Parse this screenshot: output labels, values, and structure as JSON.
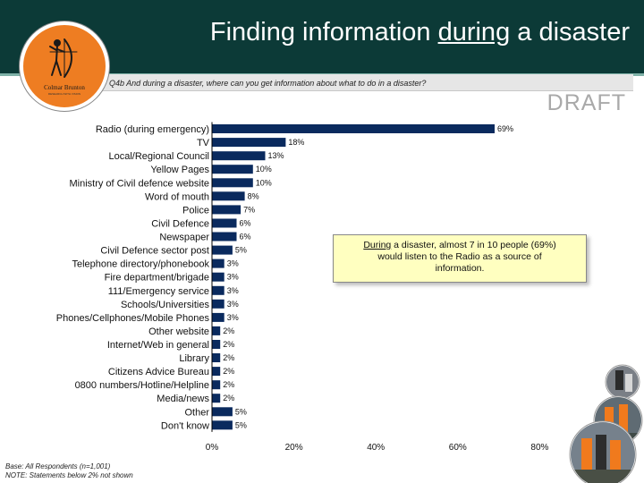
{
  "header": {
    "title_prefix": "Finding information ",
    "title_emphasis": "during",
    "title_suffix": " a disaster",
    "question": "Q4b  And during a disaster, where can you get information about what to do in a disaster?",
    "draft_label": "DRAFT"
  },
  "logo": {
    "name": "Colmar Brunton",
    "tagline": "RESEARCH WITH VISION"
  },
  "callout": {
    "emphasis": "During",
    "rest_line1": " a disaster, almost 7 in 10 people (69%)",
    "line2": "would listen to the Radio as a source of",
    "line3": "information."
  },
  "footnotes": {
    "base": "Base: All Respondents (n=1,001)",
    "note": "NOTE: Statements below 2% not shown"
  },
  "colors": {
    "header_bg": "#0c3a37",
    "bar": "#0a2a5e",
    "callout_bg": "#ffffc0",
    "logo": "#ee7d22"
  },
  "chart_data": {
    "type": "bar",
    "orientation": "horizontal",
    "categories": [
      "Radio (during emergency)",
      "TV",
      "Local/Regional Council",
      "Yellow Pages",
      "Ministry of Civil defence website",
      "Word of mouth",
      "Police",
      "Civil Defence",
      "Newspaper",
      "Civil Defence sector post",
      "Telephone directory/phonebook",
      "Fire department/brigade",
      "111/Emergency service",
      "Schools/Universities",
      "Phones/Cellphones/Mobile Phones",
      "Other website",
      "Internet/Web in general",
      "Library",
      "Citizens Advice Bureau",
      "0800 numbers/Hotline/Helpline",
      "Media/news",
      "Other",
      "Don't know"
    ],
    "values": [
      69,
      18,
      13,
      10,
      10,
      8,
      7,
      6,
      6,
      5,
      3,
      3,
      3,
      3,
      3,
      2,
      2,
      2,
      2,
      2,
      2,
      5,
      5
    ],
    "data_labels": [
      "69%",
      "18%",
      "13%",
      "10%",
      "10%",
      "8%",
      "7%",
      "6%",
      "6%",
      "5%",
      "3%",
      "3%",
      "3%",
      "3%",
      "3%",
      "2%",
      "2%",
      "2%",
      "2%",
      "2%",
      "2%",
      "5%",
      "5%"
    ],
    "x_ticks": [
      "0%",
      "20%",
      "40%",
      "60%",
      "80%"
    ],
    "xlim": [
      0,
      80
    ],
    "grid": false,
    "legend": "none"
  }
}
